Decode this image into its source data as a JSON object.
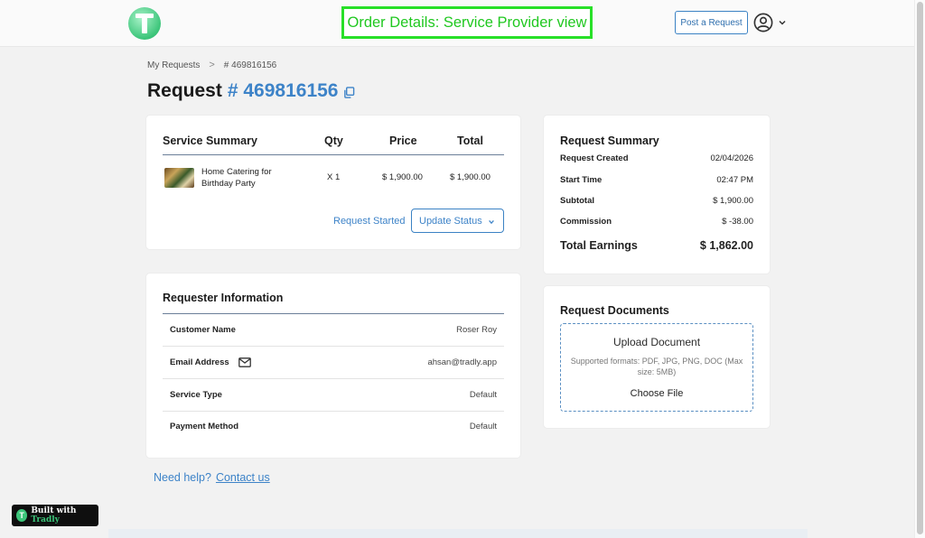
{
  "header": {
    "view_label": "Order Details: Service Provider view",
    "post_request_label": "Post a Request"
  },
  "breadcrumb": {
    "parent": "My Requests",
    "separator": ">",
    "current": "# 469816156"
  },
  "page_title": {
    "prefix": "Request",
    "number": "# 469816156"
  },
  "service_summary": {
    "headers": [
      "Service Summary",
      "Qty",
      "Price",
      "Total"
    ],
    "item": {
      "name": "Home Catering for Birthday Party",
      "qty": "X 1",
      "price": "$ 1,900.00",
      "total": "$ 1,900.00"
    },
    "status_text": "Request Started",
    "update_status_label": "Update Status"
  },
  "request_summary": {
    "title": "Request Summary",
    "rows": [
      {
        "label": "Request Created",
        "value": "02/04/2026"
      },
      {
        "label": "Start Time",
        "value": "02:47 PM"
      },
      {
        "label": "Subtotal",
        "value": "$ 1,900.00"
      },
      {
        "label": "Commission",
        "value": "$ -38.00"
      }
    ],
    "total_label": "Total Earnings",
    "total_value": "$ 1,862.00"
  },
  "requester": {
    "title": "Requester Information",
    "rows": [
      {
        "label": "Customer Name",
        "value": "Roser Roy"
      },
      {
        "label": "Email Address",
        "value": "ahsan@tradly.app"
      },
      {
        "label": "Service Type",
        "value": "Default"
      },
      {
        "label": "Payment Method",
        "value": "Default"
      }
    ]
  },
  "documents": {
    "title": "Request Documents",
    "upload_title": "Upload Document",
    "formats": "Supported formats: PDF, JPG, PNG, DOC (Max size: 5MB)",
    "choose_label": "Choose File"
  },
  "help": {
    "text": "Need help?",
    "link": "Contact us"
  },
  "badge": {
    "prefix": "Built with",
    "brand": "Tradly",
    "logo_letter": "T"
  },
  "colors": {
    "accent": "#3d83c8",
    "banner_green": "#20c820",
    "logo_green": "#3cc57a"
  }
}
